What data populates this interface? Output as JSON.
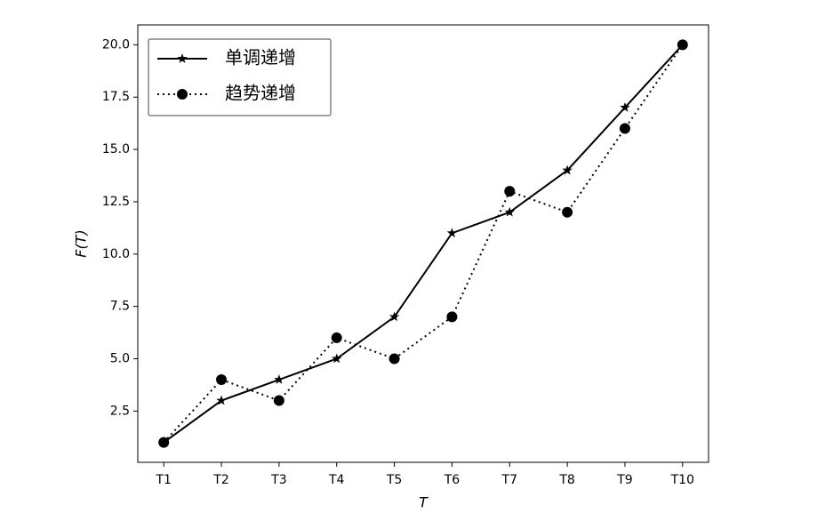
{
  "chart_data": {
    "type": "line",
    "xlabel": "T",
    "ylabel": "F(T)",
    "categories": [
      "T1",
      "T2",
      "T3",
      "T4",
      "T5",
      "T6",
      "T7",
      "T8",
      "T9",
      "T10"
    ],
    "series": [
      {
        "name": "单调递增",
        "color": "#000000",
        "linestyle": "solid",
        "marker": "star",
        "values": [
          1,
          3,
          4,
          5,
          7,
          11,
          12,
          14,
          17,
          20
        ]
      },
      {
        "name": "趋势递增",
        "color": "#000000",
        "linestyle": "dotted",
        "marker": "circle",
        "values": [
          1,
          4,
          3,
          6,
          5,
          7,
          13,
          12,
          16,
          20
        ]
      }
    ],
    "ylim": [
      0.05,
      20.95
    ],
    "yticks": [
      2.5,
      {
        "value": 5,
        "label": "5.0"
      },
      7.5,
      {
        "value": 10,
        "label": "10.0"
      },
      12.5,
      {
        "value": 15,
        "label": "15.0"
      },
      17.5,
      {
        "value": 20,
        "label": "20.0"
      }
    ],
    "grid": false,
    "legend": "upper left"
  }
}
